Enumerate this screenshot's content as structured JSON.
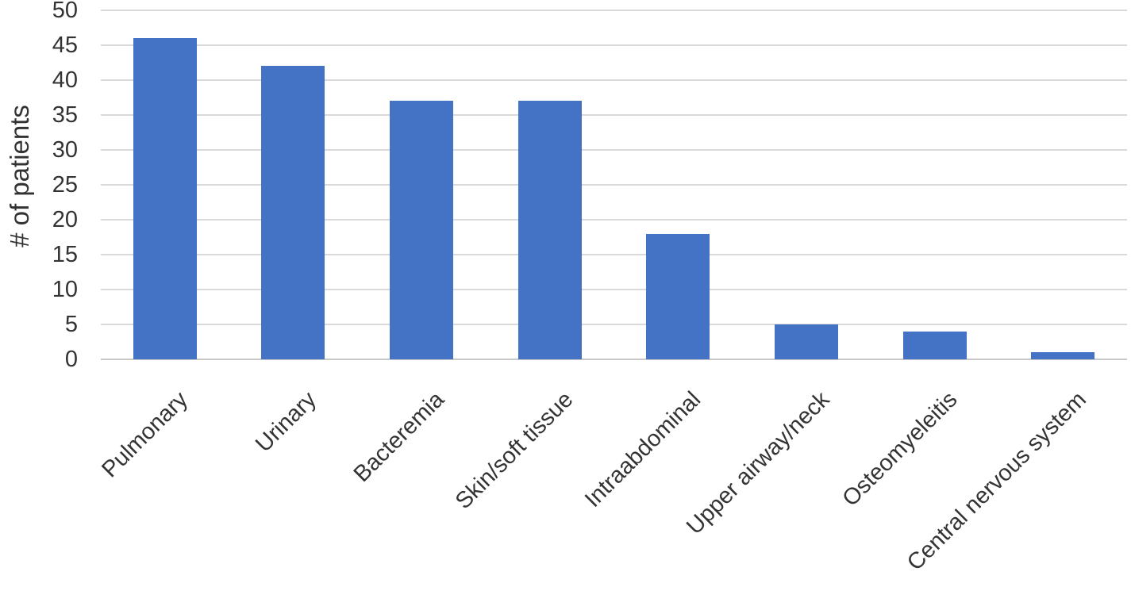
{
  "chart_data": {
    "type": "bar",
    "title": "",
    "categories": [
      "Pulmonary",
      "Urinary",
      "Bacteremia",
      "Skin/soft tissue",
      "Intraabdominal",
      "Upper airway/neck",
      "Osteomyeleitis",
      "Central nervous system"
    ],
    "values": [
      46,
      42,
      37,
      37,
      18,
      5,
      4,
      1
    ],
    "xlabel": "",
    "ylabel": "# of patients",
    "ylim": [
      0,
      50
    ],
    "ytick_step": 5,
    "ytick_labels": [
      "0",
      "5",
      "10",
      "15",
      "20",
      "25",
      "30",
      "35",
      "40",
      "45",
      "50"
    ],
    "grid": true,
    "legend": false,
    "bar_color": "#4472C4",
    "gridline_color": "#D9D9D9",
    "axis_line_color": "#C9C9C9",
    "text_color": "#333333",
    "background_color": "#FFFFFF"
  }
}
